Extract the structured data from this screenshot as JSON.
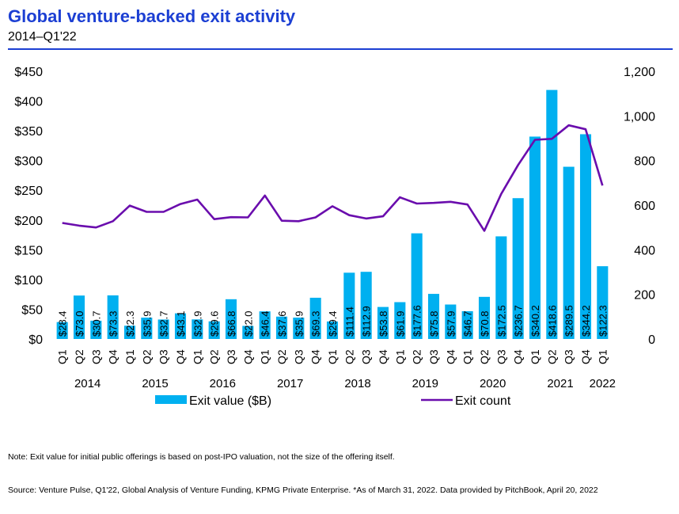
{
  "header": {
    "title": "Global venture-backed exit activity",
    "subtitle": "2014–Q1'22"
  },
  "chart_data": {
    "type": "bar",
    "categories": [
      "Q1",
      "Q2",
      "Q3",
      "Q4",
      "Q1",
      "Q2",
      "Q3",
      "Q4",
      "Q1",
      "Q2",
      "Q3",
      "Q4",
      "Q1",
      "Q2",
      "Q3",
      "Q4",
      "Q1",
      "Q2",
      "Q3",
      "Q4",
      "Q1",
      "Q2",
      "Q3",
      "Q4",
      "Q1",
      "Q2",
      "Q3",
      "Q4",
      "Q1",
      "Q2",
      "Q3",
      "Q4",
      "Q1"
    ],
    "years": [
      {
        "label": "2014",
        "start": 0,
        "end": 3
      },
      {
        "label": "2015",
        "start": 4,
        "end": 7
      },
      {
        "label": "2016",
        "start": 8,
        "end": 11
      },
      {
        "label": "2017",
        "start": 12,
        "end": 15
      },
      {
        "label": "2018",
        "start": 16,
        "end": 19
      },
      {
        "label": "2019",
        "start": 20,
        "end": 23
      },
      {
        "label": "2020",
        "start": 24,
        "end": 27
      },
      {
        "label": "2021",
        "start": 28,
        "end": 31
      },
      {
        "label": "2022",
        "start": 32,
        "end": 32
      }
    ],
    "series": [
      {
        "name": "Exit value ($B)",
        "kind": "bar",
        "axis": "left",
        "color": "#00b0f0",
        "values": [
          28.4,
          73.0,
          30.7,
          73.3,
          22.3,
          35.9,
          32.7,
          43.1,
          32.9,
          29.6,
          66.8,
          22.0,
          46.4,
          37.6,
          35.9,
          69.3,
          29.4,
          111.4,
          112.9,
          53.8,
          61.9,
          177.6,
          75.8,
          57.9,
          46.7,
          70.8,
          172.5,
          236.7,
          340.2,
          418.6,
          289.5,
          344.2,
          122.3
        ],
        "labels": [
          "$28.4",
          "$73.0",
          "$30.7",
          "$73.3",
          "$22.3",
          "$35.9",
          "$32.7",
          "$43.1",
          "$32.9",
          "$29.6",
          "$66.8",
          "$22.0",
          "$46.4",
          "$37.6",
          "$35.9",
          "$69.3",
          "$29.4",
          "$111.4",
          "$112.9",
          "$53.8",
          "$61.9",
          "$177.6",
          "$75.8",
          "$57.9",
          "$46.7",
          "$70.8",
          "$172.5",
          "$236.7",
          "$340.2",
          "$418.6",
          "$289.5",
          "$344.2",
          "$122.3"
        ]
      },
      {
        "name": "Exit count",
        "kind": "line",
        "axis": "right",
        "color": "#6a0dad",
        "values": [
          520,
          508,
          500,
          528,
          598,
          570,
          570,
          605,
          625,
          537,
          546,
          545,
          643,
          530,
          528,
          545,
          595,
          555,
          540,
          550,
          635,
          607,
          610,
          615,
          603,
          485,
          650,
          780,
          893,
          897,
          958,
          940,
          688
        ]
      }
    ],
    "y_left": {
      "min": 0,
      "max": 450,
      "ticks": [
        0,
        50,
        100,
        150,
        200,
        250,
        300,
        350,
        400,
        450
      ],
      "tick_labels": [
        "$0",
        "$50",
        "$100",
        "$150",
        "$200",
        "$250",
        "$300",
        "$350",
        "$400",
        "$450"
      ]
    },
    "y_right": {
      "min": 0,
      "max": 1200,
      "ticks": [
        0,
        200,
        400,
        600,
        800,
        1000,
        1200
      ],
      "tick_labels": [
        "0",
        "200",
        "400",
        "600",
        "800",
        "1,000",
        "1,200"
      ]
    },
    "legend_placement": "bottom",
    "grid": false
  },
  "footer": {
    "note": "Note: Exit value for initial public offerings is based on post-IPO valuation, not the size of the offering itself.",
    "source": "Source: Venture Pulse, Q1'22, Global Analysis of Venture Funding, KPMG Private Enterprise. *As of March 31, 2022. Data provided by PitchBook, April 20, 2022"
  }
}
